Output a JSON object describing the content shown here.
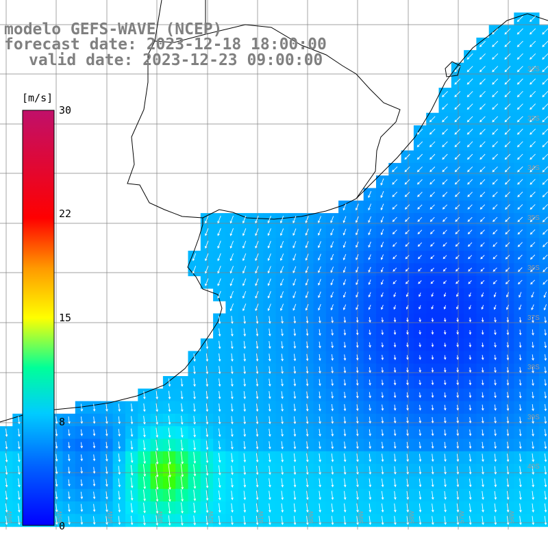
{
  "header": {
    "model": "modelo GEFS-WAVE (NCEP)",
    "forecast": "forecast date: 2023-12-18 18:00:00",
    "valid": "valid date: 2023-12-23 09:00:00"
  },
  "colorbar": {
    "unit": "[m/s]",
    "ticks": [
      "30",
      "22",
      "15",
      "8",
      "0"
    ],
    "tick_values": [
      30,
      22,
      15,
      8,
      0
    ],
    "colors": [
      "#0000ff",
      "#00aaff",
      "#00ffff",
      "#00ff00",
      "#ffff00",
      "#ff8800",
      "#ff0000",
      "#c0106a"
    ]
  },
  "grid": {
    "lat_labels": [
      "32S",
      "33S",
      "34S",
      "35S",
      "36S",
      "37S",
      "38S",
      "39S",
      "40S"
    ],
    "lon_labels": [
      "66W",
      "65W",
      "64W",
      "63W",
      "62W",
      "61W",
      "60W",
      "59W",
      "58W",
      "57W",
      "56W"
    ]
  },
  "colors": {
    "land": "#ffffff",
    "coast": "#000000",
    "grid": "#808080",
    "arrow": "#ffffff",
    "title": "#808080"
  }
}
